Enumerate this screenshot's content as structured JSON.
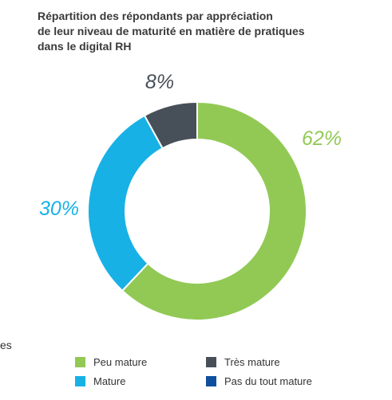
{
  "title_lines": [
    "Répartition des répondants par appréciation",
    "de leur niveau de maturité en matière de pratiques",
    "dans le digital RH"
  ],
  "stray_text": "es",
  "chart_data": {
    "type": "pie",
    "style": "donut",
    "title": "Répartition des répondants par appréciation de leur niveau de maturité en matière de pratiques dans le digital RH",
    "categories": [
      "Peu mature",
      "Mature",
      "Très mature",
      "Pas du tout mature"
    ],
    "values": [
      62,
      30,
      8,
      0
    ],
    "labels": [
      "62%",
      "30%",
      "8%",
      ""
    ],
    "colors": [
      "#92c955",
      "#17b1e6",
      "#475058",
      "#0f4f9f"
    ],
    "legend_placement": "bottom"
  },
  "legend": [
    {
      "label": "Peu mature",
      "color": "#92c955"
    },
    {
      "label": "Très mature",
      "color": "#475058"
    },
    {
      "label": "Mature",
      "color": "#17b1e6"
    },
    {
      "label": "Pas du tout mature",
      "color": "#0f4f9f"
    }
  ]
}
